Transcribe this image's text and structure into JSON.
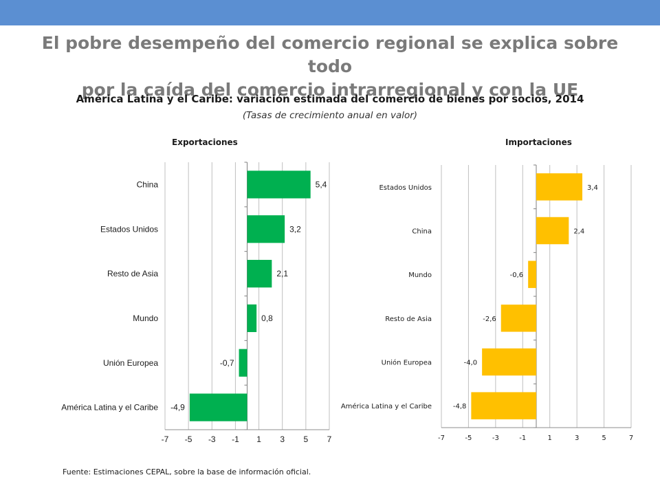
{
  "slide": {
    "title_line1": "El pobre desempeño del comercio regional se explica sobre todo",
    "title_line2": "por la caída del comercio intrarregional y con la UE",
    "subtitle": "América Latina y el Caribe: variación estimada del comercio de bienes por socios, 2014",
    "subtitle_note": "(Tasas de crecimiento anual en valor)",
    "source_label": "Fuente:",
    "source_text": "Estimaciones CEPAL, sobre la base de información oficial.",
    "accent_color": "#5b8fd2"
  },
  "chart_data": [
    {
      "type": "bar",
      "orientation": "horizontal",
      "title": "Exportaciones",
      "categories": [
        "China",
        "Estados Unidos",
        "Resto de Asia",
        "Mundo",
        "Unión Europea",
        "América Latina y el Caribe"
      ],
      "values": [
        5.4,
        3.2,
        2.1,
        0.8,
        -0.7,
        -4.9
      ],
      "value_labels": [
        "5,4",
        "3,2",
        "2,1",
        "0,8",
        "-0,7",
        "-4,9"
      ],
      "xlim": [
        -7,
        7
      ],
      "ticks": [
        -7,
        -5,
        -3,
        -1,
        1,
        3,
        5,
        7
      ],
      "tick_labels": [
        "-7",
        "-5",
        "-3",
        "-1",
        "1",
        "3",
        "5",
        "7"
      ],
      "bar_color": "#00b050",
      "grid": true
    },
    {
      "type": "bar",
      "orientation": "horizontal",
      "title": "Importaciones",
      "categories": [
        "Estados Unidos",
        "China",
        "Mundo",
        "Resto de Asia",
        "Unión Europea",
        "América Latina y el Caribe"
      ],
      "values": [
        3.4,
        2.4,
        -0.6,
        -2.6,
        -4.0,
        -4.8
      ],
      "value_labels": [
        "3,4",
        "2,4",
        "-0,6",
        "-2,6",
        "-4,0",
        "-4,8"
      ],
      "xlim": [
        -7,
        7
      ],
      "ticks": [
        -7,
        -5,
        -3,
        -1,
        1,
        3,
        5,
        7
      ],
      "tick_labels": [
        "-7",
        "-5",
        "-3",
        "-1",
        "1",
        "3",
        "5",
        "7"
      ],
      "bar_color": "#ffc000",
      "grid": true
    }
  ]
}
